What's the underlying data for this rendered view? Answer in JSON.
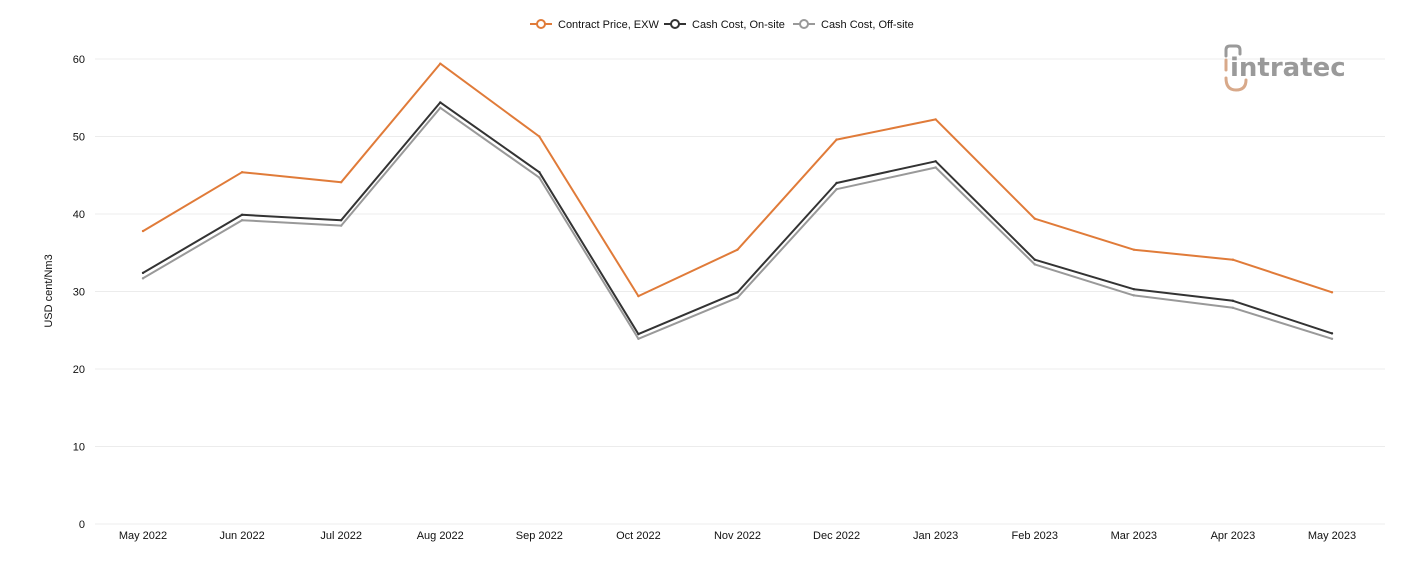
{
  "brand": {
    "logo_text": "intratec",
    "colors": {
      "accent": "#d8a98a",
      "gray": "#9a9a9a"
    }
  },
  "chart_data": {
    "type": "line",
    "title": "",
    "xlabel": "",
    "ylabel": "USD cent/Nm3",
    "ylim": [
      0,
      60
    ],
    "yticks": [
      0,
      10,
      20,
      30,
      40,
      50,
      60
    ],
    "grid": true,
    "legend_position": "top-center",
    "categories": [
      "May 2022",
      "Jun 2022",
      "Jul 2022",
      "Aug 2022",
      "Sep 2022",
      "Oct 2022",
      "Nov 2022",
      "Dec 2022",
      "Jan 2023",
      "Feb 2023",
      "Mar 2023",
      "Apr 2023",
      "May 2023"
    ],
    "series": [
      {
        "name": "Contract Price, EXW",
        "color": "#e07b39",
        "values": [
          37.8,
          45.4,
          44.1,
          59.4,
          50.0,
          29.4,
          35.4,
          49.6,
          52.2,
          39.4,
          35.4,
          34.1,
          29.9
        ]
      },
      {
        "name": "Cash Cost, On-site",
        "color": "#333333",
        "values": [
          32.4,
          39.9,
          39.2,
          54.4,
          45.4,
          24.5,
          29.9,
          44.0,
          46.8,
          34.1,
          30.3,
          28.8,
          24.6
        ]
      },
      {
        "name": "Cash Cost, Off-site",
        "color": "#999999",
        "values": [
          31.7,
          39.2,
          38.5,
          53.7,
          44.7,
          23.9,
          29.2,
          43.2,
          46.0,
          33.5,
          29.5,
          27.9,
          23.9
        ]
      }
    ]
  }
}
